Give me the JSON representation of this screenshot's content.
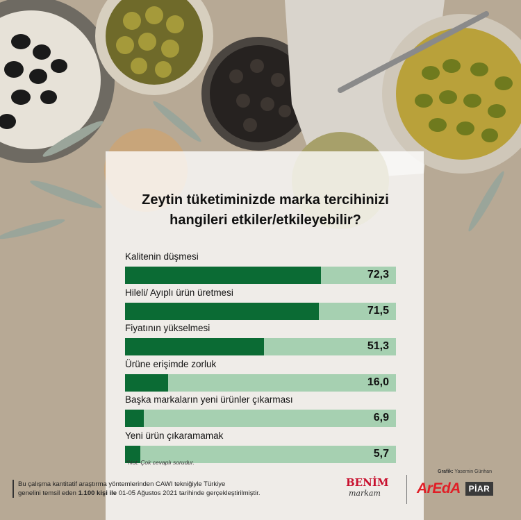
{
  "chart_data": {
    "type": "bar",
    "orientation": "horizontal",
    "title": "Zeytin tüketiminizde marka tercihinizi hangileri etkiler/etkileyebilir?",
    "title_lines": [
      "Zeytin tüketiminizde marka tercihinizi",
      "hangileri etkiler/etkileyebilir?"
    ],
    "categories": [
      "Kalitenin düşmesi",
      "Hileli/ Ayıplı ürün üretmesi",
      "Fiyatının yükselmesi",
      "Ürüne erişimde zorluk",
      "Başka markaların yeni ürünler çıkarması",
      "Yeni ürün çıkaramamak"
    ],
    "values": [
      72.3,
      71.5,
      51.3,
      16.0,
      6.9,
      5.7
    ],
    "value_labels": [
      "72,3",
      "71,5",
      "51,3",
      "16,0",
      "6,9",
      "5,7"
    ],
    "xlim": [
      0,
      100
    ],
    "colors": {
      "fill": "#0b6b34",
      "track": "#a6d0b1"
    }
  },
  "note": "*Not: Çok cevaplı sorudur.",
  "footer": {
    "line1": "Bu çalışma kantitatif araştırma yöntemlerinden CAWI tekniğiyle Türkiye",
    "line2_pre": "genelini temsil eden ",
    "line2_bold": "1.100 kişi ile",
    "line2_post": " 01-05 Ağustos 2021 tarihinde gerçekleştirilmiştir."
  },
  "credits": {
    "label": "Grafik:",
    "name": "Yasemin Günhan"
  },
  "logos": {
    "benim_1": "BENİM",
    "benim_2": "markam",
    "areda": "ArEdA",
    "piar": "PİAR"
  }
}
